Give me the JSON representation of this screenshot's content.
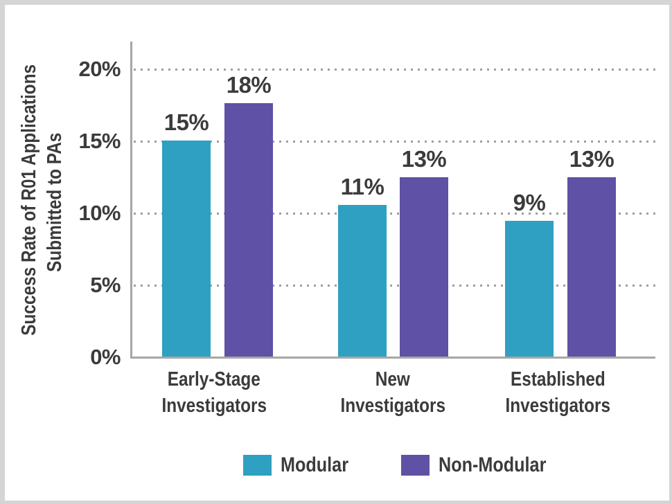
{
  "colors": {
    "modular": "#2FA0C1",
    "non_modular": "#5F51A5",
    "text": "#3B3B3B",
    "grid": "#9E9E9E",
    "axis": "#A6A6A6",
    "frame": "#D5D5D5",
    "background": "#FFFFFF"
  },
  "chart_data": {
    "type": "bar",
    "title": "",
    "ylabel": "Success Rate of R01 Applications Submitted to PAs",
    "ylabel_lines": [
      "Success Rate of R01 Applications",
      "Submitted to PAs"
    ],
    "xlabel": "",
    "categories": [
      "Early-Stage Investigators",
      "New Investigators",
      "Established Investigators"
    ],
    "category_lines": [
      [
        "Early-Stage",
        "Investigators"
      ],
      [
        "New",
        "Investigators"
      ],
      [
        "Established",
        "Investigators"
      ]
    ],
    "series": [
      {
        "name": "Modular",
        "color": "#2FA0C1",
        "values": [
          15,
          11,
          9
        ],
        "labels": [
          "15%",
          "11%",
          "9%"
        ],
        "plotted_percent": [
          15.0,
          10.55,
          9.45
        ]
      },
      {
        "name": "Non-Modular",
        "color": "#5F51A5",
        "values": [
          18,
          13,
          13
        ],
        "labels": [
          "18%",
          "13%",
          "13%"
        ],
        "plotted_percent": [
          17.6,
          12.45,
          12.45
        ]
      }
    ],
    "y_ticks": [
      {
        "label": "20%",
        "value": 20
      },
      {
        "label": "15%",
        "value": 15
      },
      {
        "label": "10%",
        "value": 10
      },
      {
        "label": "5%",
        "value": 5
      },
      {
        "label": "0%",
        "value": 0
      }
    ],
    "ylim": [
      0,
      22
    ],
    "grid": "horizontal-dotted",
    "legend_position": "bottom"
  }
}
